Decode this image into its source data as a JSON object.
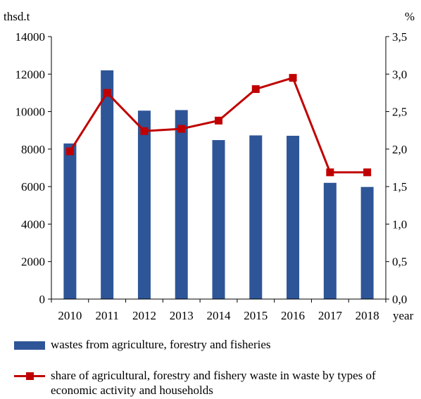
{
  "chart_data": {
    "type": "bar+line",
    "categories": [
      "2010",
      "2011",
      "2012",
      "2013",
      "2014",
      "2015",
      "2016",
      "2017",
      "2018"
    ],
    "series": [
      {
        "name": "wastes from agriculture, forestry and fisheries",
        "type": "bar",
        "axis": "left",
        "values": [
          8300,
          12200,
          10050,
          10080,
          8480,
          8730,
          8710,
          6200,
          5980
        ]
      },
      {
        "name": "share of agricultural, forestry and fishery waste in waste by types of economic activity and households",
        "type": "line",
        "axis": "right",
        "values": [
          1.97,
          2.75,
          2.24,
          2.27,
          2.38,
          2.8,
          2.95,
          1.69,
          1.69
        ]
      }
    ],
    "y_left": {
      "label": "thsd.t",
      "min": 0,
      "max": 14000,
      "ticks": [
        "0",
        "2000",
        "4000",
        "6000",
        "8000",
        "10000",
        "12000",
        "14000"
      ]
    },
    "y_right": {
      "label": "%",
      "min": 0,
      "max": 3.5,
      "ticks": [
        "0,0",
        "0,5",
        "1,0",
        "1,5",
        "2,0",
        "2,5",
        "3,0",
        "3,5"
      ]
    },
    "xlabel": "year",
    "grid": false,
    "legend_position": "bottom",
    "colors": {
      "bar": "#2E5597",
      "line": "#C00000"
    }
  }
}
